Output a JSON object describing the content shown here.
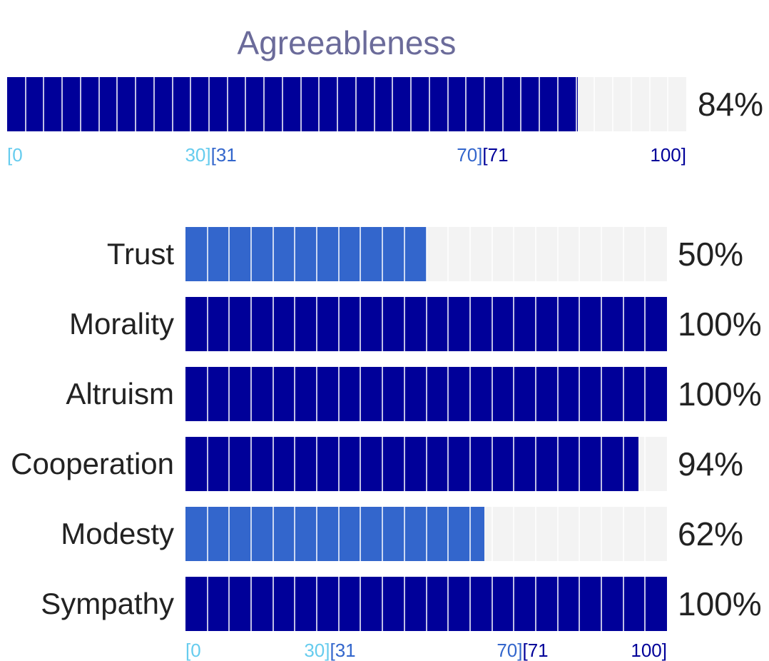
{
  "colors": {
    "high": "#000099",
    "average": "#3366cc",
    "low": "#66ccee",
    "track": "#f3f3f3",
    "title": "#6b6b9a",
    "text": "#222222"
  },
  "chart_data": {
    "type": "bar",
    "title": "Agreeableness",
    "overall": {
      "value": 84,
      "label": "84%"
    },
    "xlim": [
      0,
      100
    ],
    "scale_ticks": [
      {
        "text": "[0",
        "pos": 0,
        "color": "#66ccee"
      },
      {
        "text": "30]",
        "pos": 30,
        "color": "#66ccee",
        "align": "right"
      },
      {
        "text": "[31",
        "pos": 30,
        "color": "#3366cc"
      },
      {
        "text": "70]",
        "pos": 70,
        "color": "#3366cc",
        "align": "right"
      },
      {
        "text": "[71",
        "pos": 70,
        "color": "#000099"
      },
      {
        "text": "100]",
        "pos": 100,
        "color": "#000099",
        "align": "right"
      }
    ],
    "categories": [
      "Trust",
      "Morality",
      "Altruism",
      "Cooperation",
      "Modesty",
      "Sympathy"
    ],
    "values": [
      50,
      100,
      100,
      94,
      62,
      100
    ],
    "value_labels": [
      "50%",
      "100%",
      "100%",
      "94%",
      "62%",
      "100%"
    ]
  }
}
